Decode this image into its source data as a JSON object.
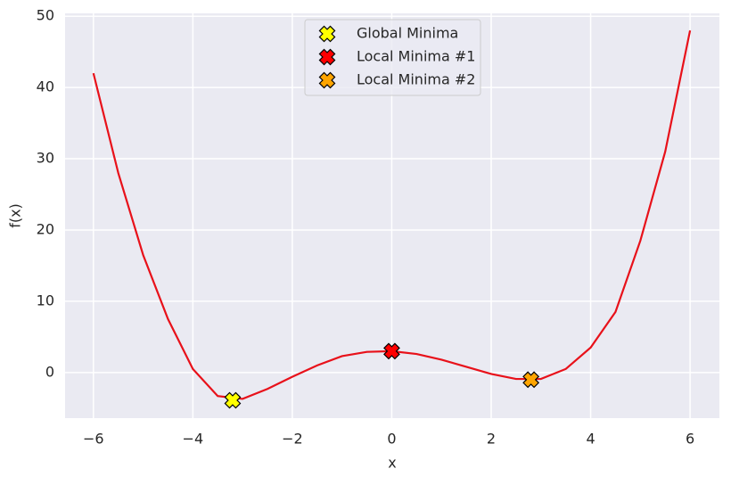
{
  "chart_data": {
    "type": "line",
    "xlabel": "x",
    "ylabel": "f(x)",
    "x": [
      -6,
      -5.5,
      -5,
      -4.5,
      -4,
      -3.5,
      -3,
      -2.5,
      -2,
      -1.5,
      -1,
      -0.5,
      0,
      0.5,
      1,
      1.5,
      2,
      2.5,
      3,
      3.5,
      4,
      4.5,
      5,
      5.5,
      6
    ],
    "series": [
      {
        "color": "#e8111a",
        "values": [
          42,
          28,
          16.5,
          7.5,
          0.5,
          -3.3,
          -3.7,
          -2.3,
          -0.6,
          1.0,
          2.3,
          2.9,
          3,
          2.6,
          1.8,
          0.8,
          -0.2,
          -0.9,
          -0.9,
          0.5,
          3.5,
          8.5,
          18.5,
          31,
          48
        ]
      }
    ],
    "points": [
      {
        "name": "Global Minima",
        "color": "#ffff00",
        "x": -3.2,
        "y": -3.9
      },
      {
        "name": "Local Minima #1",
        "color": "#ff0000",
        "x": 0,
        "y": 3
      },
      {
        "name": "Local Minima #2",
        "color": "#ffa500",
        "x": 2.8,
        "y": -1
      }
    ],
    "xlim": [
      -6.57,
      6.59
    ],
    "ylim": [
      -6.4,
      50.4
    ],
    "xticks": [
      {
        "value": -6,
        "label": "−6"
      },
      {
        "value": -4,
        "label": "−4"
      },
      {
        "value": -2,
        "label": "−2"
      },
      0,
      2,
      4,
      6
    ],
    "yticks": [
      0,
      10,
      20,
      30,
      40,
      50
    ],
    "grid": true,
    "legend": "upper center"
  }
}
